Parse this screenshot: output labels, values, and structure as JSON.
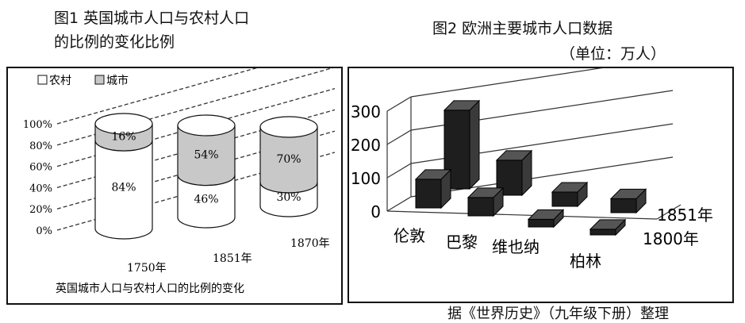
{
  "fig1": {
    "title_line1": "图1 英国城市人口与农村人口",
    "title_line2": "的比例的变化比例",
    "legend": {
      "rural": "农村",
      "urban": "城市"
    },
    "caption": "英国城市人口与农村人口的比例的变化",
    "y_ticks": [
      "100%",
      "80%",
      "60%",
      "40%",
      "20%",
      "0%"
    ]
  },
  "fig2": {
    "title": "图2 欧洲主要城市人口数据",
    "unit": "（单位：万人）",
    "y_ticks": [
      "300",
      "200",
      "100",
      "0"
    ]
  },
  "source": "据《世界历史》（九年级下册）整理",
  "colors": {
    "bar_dark": "#1e1e1e",
    "urban_fill": "#c8c8c8",
    "rural_fill": "#ffffff"
  },
  "chart_data": [
    {
      "type": "bar",
      "title": "图1 英国城市人口与农村人口的比例的变化比例",
      "caption": "英国城市人口与农村人口的比例的变化",
      "categories": [
        "1750年",
        "1851年",
        "1870年"
      ],
      "series": [
        {
          "name": "农村",
          "values": [
            84,
            46,
            30
          ],
          "labels": [
            "84%",
            "46%",
            "30%"
          ]
        },
        {
          "name": "城市",
          "values": [
            16,
            54,
            70
          ],
          "labels": [
            "16%",
            "54%",
            "70%"
          ]
        }
      ],
      "ylim": [
        0,
        100
      ],
      "stacked": true,
      "legend": "top-left"
    },
    {
      "type": "bar",
      "title": "图2 欧洲主要城市人口数据",
      "unit": "（单位：万人）",
      "categories": [
        "伦敦",
        "巴黎",
        "维也纳",
        "柏林"
      ],
      "series": [
        {
          "name": "1800年",
          "values": [
            86,
            55,
            23,
            17
          ]
        },
        {
          "name": "1851年",
          "values": [
            236,
            105,
            43,
            42
          ]
        }
      ],
      "ylim": [
        0,
        300
      ],
      "grid": true
    }
  ]
}
